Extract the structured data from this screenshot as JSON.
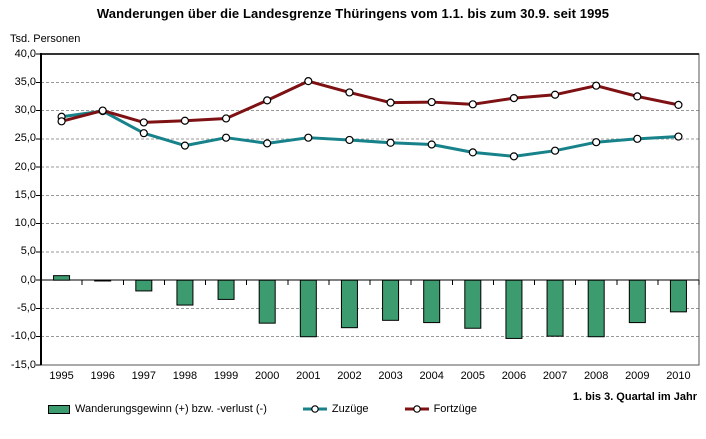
{
  "title": "Wanderungen über die Landesgrenze Thüringens vom 1.1. bis zum 30.9. seit 1995",
  "y_axis_unit": "Tsd. Personen",
  "x_axis_note": "1. bis 3. Quartal im Jahr",
  "colors": {
    "bar_fill": "#3d9c6f",
    "bar_border": "#000000",
    "zuzuege_line": "#17828a",
    "fortzuege_line": "#7e1113",
    "gridline": "#999999",
    "axis": "#000000",
    "plot_border": "#555555",
    "marker_fill": "#ffffff",
    "marker_border": "#000000"
  },
  "legend": [
    {
      "label": "Wanderungsgewinn (+) bzw. -verlust (-)",
      "marker": "bar-swatch",
      "color": "#3d9c6f"
    },
    {
      "label": "Zuzüge",
      "marker": "line-circle",
      "color": "#17828a"
    },
    {
      "label": "Fortzüge",
      "marker": "line-circle",
      "color": "#7e1113"
    }
  ],
  "chart_data": {
    "type": "bar+line",
    "title": "Wanderungen über die Landesgrenze Thüringens vom 1.1. bis zum 30.9. seit 1995",
    "ylabel": "Tsd. Personen",
    "xlabel": "1. bis 3. Quartal im Jahr",
    "ylim": [
      -15,
      40
    ],
    "ytick_step": 5,
    "grid": "horizontal dashed",
    "legend_position": "bottom",
    "categories": [
      "1995",
      "1996",
      "1997",
      "1998",
      "1999",
      "2000",
      "2001",
      "2002",
      "2003",
      "2004",
      "2005",
      "2006",
      "2007",
      "2008",
      "2009",
      "2010"
    ],
    "y_ticks": [
      {
        "v": 40,
        "label": "40,0"
      },
      {
        "v": 35,
        "label": "35,0"
      },
      {
        "v": 30,
        "label": "30,0"
      },
      {
        "v": 25,
        "label": "25,0"
      },
      {
        "v": 20,
        "label": "20,0"
      },
      {
        "v": 15,
        "label": "15,0"
      },
      {
        "v": 10,
        "label": "10,0"
      },
      {
        "v": 5,
        "label": "5,0"
      },
      {
        "v": 0,
        "label": "0,0"
      },
      {
        "v": -5,
        "label": "-5,0"
      },
      {
        "v": -10,
        "label": "-10,0"
      },
      {
        "v": -15,
        "label": "-15,0"
      }
    ],
    "series": [
      {
        "name": "Wanderungsgewinn (+) bzw. -verlust (-)",
        "type": "bar",
        "color": "#3d9c6f",
        "values": [
          0.8,
          -0.1,
          -1.9,
          -4.4,
          -3.4,
          -7.6,
          -10.0,
          -8.4,
          -7.1,
          -7.5,
          -8.5,
          -10.3,
          -9.9,
          -10.0,
          -7.5,
          -5.6
        ]
      },
      {
        "name": "Zuzüge",
        "type": "line",
        "color": "#17828a",
        "values": [
          28.9,
          29.9,
          26.0,
          23.8,
          25.2,
          24.2,
          25.2,
          24.8,
          24.3,
          24.0,
          22.6,
          21.9,
          22.9,
          24.4,
          25.0,
          25.4
        ]
      },
      {
        "name": "Fortzüge",
        "type": "line",
        "color": "#7e1113",
        "values": [
          28.1,
          30.0,
          27.9,
          28.2,
          28.6,
          31.8,
          35.2,
          33.2,
          31.4,
          31.5,
          31.1,
          32.2,
          32.8,
          34.4,
          32.5,
          31.0
        ]
      }
    ]
  }
}
